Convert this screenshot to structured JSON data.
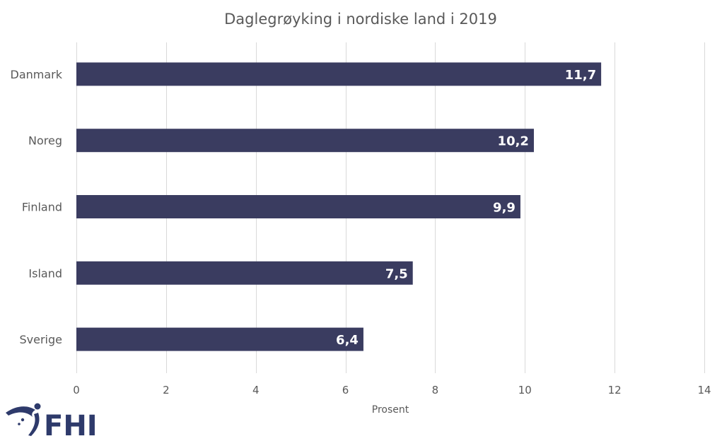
{
  "chart_data": {
    "type": "bar",
    "orientation": "horizontal",
    "title": "Daglegrøyking i nordiske land i 2019",
    "categories": [
      "Danmark",
      "Noreg",
      "Finland",
      "Island",
      "Sverige"
    ],
    "values": [
      11.7,
      10.2,
      9.9,
      7.5,
      6.4
    ],
    "data_labels": [
      "11,7",
      "10,2",
      "9,9",
      "7,5",
      "6,4"
    ],
    "xlabel": "Prosent",
    "ylabel": "",
    "xlim": [
      0,
      14
    ],
    "xticks": [
      0,
      2,
      4,
      6,
      8,
      10,
      12,
      14
    ],
    "xtick_labels": [
      "0",
      "2",
      "4",
      "6",
      "8",
      "10",
      "12",
      "14"
    ],
    "grid": true,
    "legend": "none",
    "bar_color": "#3a3c60",
    "grid_color": "#d9d9d9"
  },
  "logo": {
    "text": "FHI",
    "color": "#2e3a6b"
  }
}
